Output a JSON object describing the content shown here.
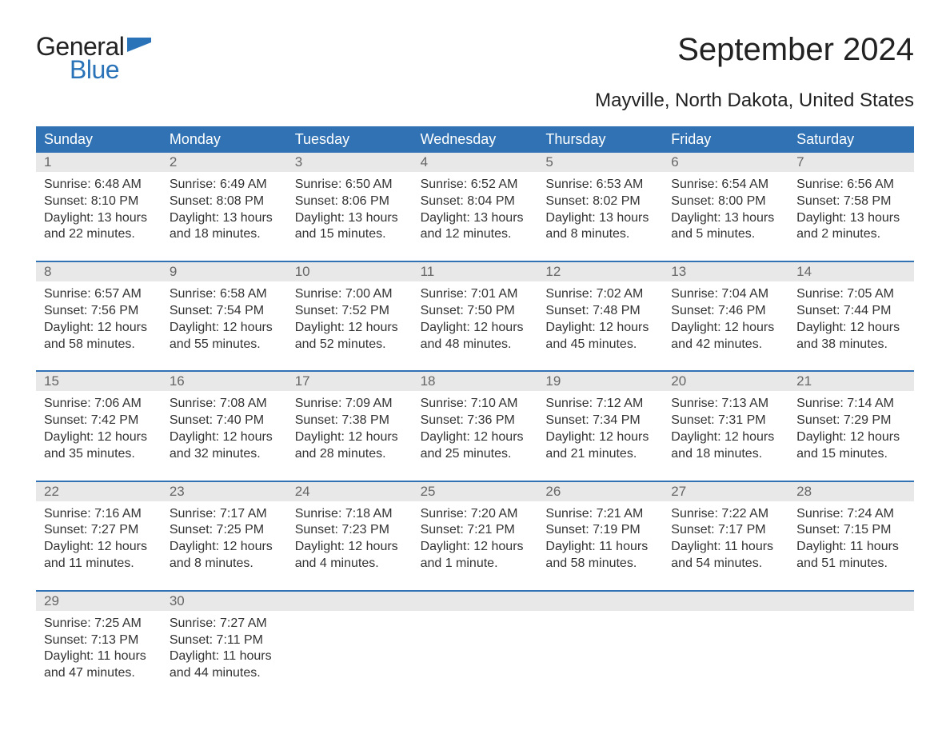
{
  "logo": {
    "text1": "General",
    "text2": "Blue",
    "icon_color": "#2a73b8"
  },
  "title": "September 2024",
  "subtitle": "Mayville, North Dakota, United States",
  "colors": {
    "header_bg": "#3072b3",
    "header_fg": "#ffffff",
    "daynum_bg": "#e8e8e8",
    "daynum_fg": "#666666",
    "week_border": "#3072b3",
    "body_text": "#333333",
    "background": "#ffffff"
  },
  "day_names": [
    "Sunday",
    "Monday",
    "Tuesday",
    "Wednesday",
    "Thursday",
    "Friday",
    "Saturday"
  ],
  "labels": {
    "sunrise": "Sunrise:",
    "sunset": "Sunset:",
    "daylight": "Daylight:",
    "and": "and"
  },
  "weeks": [
    [
      {
        "n": "1",
        "sunrise": "6:48 AM",
        "sunset": "8:10 PM",
        "dl_h": "13 hours",
        "dl_m": "22 minutes."
      },
      {
        "n": "2",
        "sunrise": "6:49 AM",
        "sunset": "8:08 PM",
        "dl_h": "13 hours",
        "dl_m": "18 minutes."
      },
      {
        "n": "3",
        "sunrise": "6:50 AM",
        "sunset": "8:06 PM",
        "dl_h": "13 hours",
        "dl_m": "15 minutes."
      },
      {
        "n": "4",
        "sunrise": "6:52 AM",
        "sunset": "8:04 PM",
        "dl_h": "13 hours",
        "dl_m": "12 minutes."
      },
      {
        "n": "5",
        "sunrise": "6:53 AM",
        "sunset": "8:02 PM",
        "dl_h": "13 hours",
        "dl_m": "8 minutes."
      },
      {
        "n": "6",
        "sunrise": "6:54 AM",
        "sunset": "8:00 PM",
        "dl_h": "13 hours",
        "dl_m": "5 minutes."
      },
      {
        "n": "7",
        "sunrise": "6:56 AM",
        "sunset": "7:58 PM",
        "dl_h": "13 hours",
        "dl_m": "2 minutes."
      }
    ],
    [
      {
        "n": "8",
        "sunrise": "6:57 AM",
        "sunset": "7:56 PM",
        "dl_h": "12 hours",
        "dl_m": "58 minutes."
      },
      {
        "n": "9",
        "sunrise": "6:58 AM",
        "sunset": "7:54 PM",
        "dl_h": "12 hours",
        "dl_m": "55 minutes."
      },
      {
        "n": "10",
        "sunrise": "7:00 AM",
        "sunset": "7:52 PM",
        "dl_h": "12 hours",
        "dl_m": "52 minutes."
      },
      {
        "n": "11",
        "sunrise": "7:01 AM",
        "sunset": "7:50 PM",
        "dl_h": "12 hours",
        "dl_m": "48 minutes."
      },
      {
        "n": "12",
        "sunrise": "7:02 AM",
        "sunset": "7:48 PM",
        "dl_h": "12 hours",
        "dl_m": "45 minutes."
      },
      {
        "n": "13",
        "sunrise": "7:04 AM",
        "sunset": "7:46 PM",
        "dl_h": "12 hours",
        "dl_m": "42 minutes."
      },
      {
        "n": "14",
        "sunrise": "7:05 AM",
        "sunset": "7:44 PM",
        "dl_h": "12 hours",
        "dl_m": "38 minutes."
      }
    ],
    [
      {
        "n": "15",
        "sunrise": "7:06 AM",
        "sunset": "7:42 PM",
        "dl_h": "12 hours",
        "dl_m": "35 minutes."
      },
      {
        "n": "16",
        "sunrise": "7:08 AM",
        "sunset": "7:40 PM",
        "dl_h": "12 hours",
        "dl_m": "32 minutes."
      },
      {
        "n": "17",
        "sunrise": "7:09 AM",
        "sunset": "7:38 PM",
        "dl_h": "12 hours",
        "dl_m": "28 minutes."
      },
      {
        "n": "18",
        "sunrise": "7:10 AM",
        "sunset": "7:36 PM",
        "dl_h": "12 hours",
        "dl_m": "25 minutes."
      },
      {
        "n": "19",
        "sunrise": "7:12 AM",
        "sunset": "7:34 PM",
        "dl_h": "12 hours",
        "dl_m": "21 minutes."
      },
      {
        "n": "20",
        "sunrise": "7:13 AM",
        "sunset": "7:31 PM",
        "dl_h": "12 hours",
        "dl_m": "18 minutes."
      },
      {
        "n": "21",
        "sunrise": "7:14 AM",
        "sunset": "7:29 PM",
        "dl_h": "12 hours",
        "dl_m": "15 minutes."
      }
    ],
    [
      {
        "n": "22",
        "sunrise": "7:16 AM",
        "sunset": "7:27 PM",
        "dl_h": "12 hours",
        "dl_m": "11 minutes."
      },
      {
        "n": "23",
        "sunrise": "7:17 AM",
        "sunset": "7:25 PM",
        "dl_h": "12 hours",
        "dl_m": "8 minutes."
      },
      {
        "n": "24",
        "sunrise": "7:18 AM",
        "sunset": "7:23 PM",
        "dl_h": "12 hours",
        "dl_m": "4 minutes."
      },
      {
        "n": "25",
        "sunrise": "7:20 AM",
        "sunset": "7:21 PM",
        "dl_h": "12 hours",
        "dl_m": "1 minute."
      },
      {
        "n": "26",
        "sunrise": "7:21 AM",
        "sunset": "7:19 PM",
        "dl_h": "11 hours",
        "dl_m": "58 minutes."
      },
      {
        "n": "27",
        "sunrise": "7:22 AM",
        "sunset": "7:17 PM",
        "dl_h": "11 hours",
        "dl_m": "54 minutes."
      },
      {
        "n": "28",
        "sunrise": "7:24 AM",
        "sunset": "7:15 PM",
        "dl_h": "11 hours",
        "dl_m": "51 minutes."
      }
    ],
    [
      {
        "n": "29",
        "sunrise": "7:25 AM",
        "sunset": "7:13 PM",
        "dl_h": "11 hours",
        "dl_m": "47 minutes."
      },
      {
        "n": "30",
        "sunrise": "7:27 AM",
        "sunset": "7:11 PM",
        "dl_h": "11 hours",
        "dl_m": "44 minutes."
      },
      null,
      null,
      null,
      null,
      null
    ]
  ]
}
